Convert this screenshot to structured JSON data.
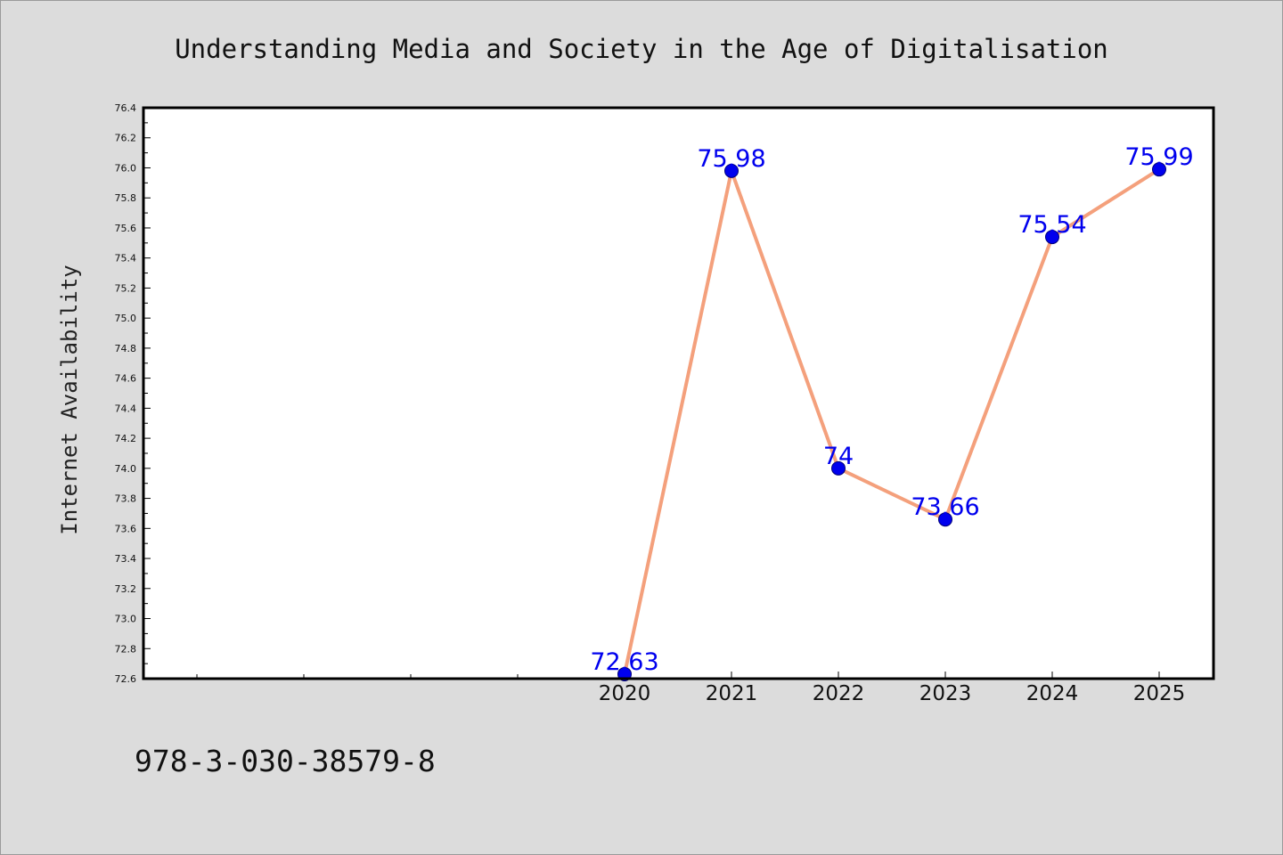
{
  "figure": {
    "background_color": "#dcdcdc",
    "plot_background_color": "#ffffff",
    "footer_text": "978-3-030-38579-8"
  },
  "chart_data": {
    "type": "line",
    "title": "Understanding Media and Society in the Age of Digitalisation",
    "xlabel": "",
    "ylabel": "Internet Availability",
    "categories": [
      "2020",
      "2021",
      "2022",
      "2023",
      "2024",
      "2025"
    ],
    "series": [
      {
        "values": [
          72.63,
          75.98,
          74.0,
          73.66,
          75.54,
          75.99
        ],
        "labels": [
          "72.63",
          "75.98",
          "74",
          "73.66",
          "75.54",
          "75.99"
        ],
        "line_color": "#f4a07c",
        "marker_color": "#0000ee",
        "label_color": "#0000ee"
      }
    ],
    "ylim": [
      72.6,
      76.4
    ],
    "y_ticks": [
      "72.6",
      "72.8",
      "73.0",
      "73.2",
      "73.4",
      "73.6",
      "73.8",
      "74.0",
      "74.2",
      "74.4",
      "74.6",
      "74.8",
      "75.0",
      "75.2",
      "75.4",
      "75.6",
      "75.8",
      "76.0",
      "76.2",
      "76.4"
    ],
    "grid": false,
    "legend": "none"
  }
}
